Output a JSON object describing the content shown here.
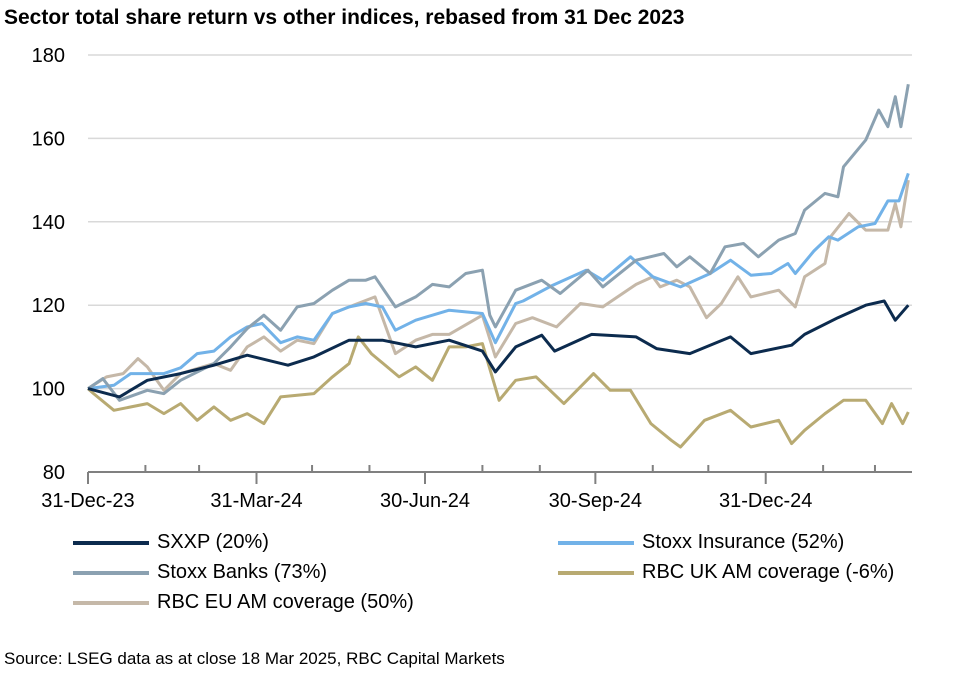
{
  "chart_data": {
    "type": "line",
    "title": "Sector total share return vs other indices, rebased from 31 Dec 2023",
    "xlabel": "",
    "ylabel": "",
    "ylim": [
      80,
      180
    ],
    "yticks": [
      80,
      100,
      120,
      140,
      160,
      180
    ],
    "xlim": [
      "2023-12-31",
      "2025-03-20"
    ],
    "xtick_labels": [
      {
        "date": "2023-12-31",
        "label": "31-Dec-23"
      },
      {
        "date": "2024-03-31",
        "label": "31-Mar-24"
      },
      {
        "date": "2024-06-30",
        "label": "30-Jun-24"
      },
      {
        "date": "2024-09-30",
        "label": "30-Sep-24"
      },
      {
        "date": "2024-12-31",
        "label": "31-Dec-24"
      }
    ],
    "grid": "horizontal",
    "legend_position": "bottom",
    "series": [
      {
        "name": "SXXP (20%)",
        "color": "#0c2b4e",
        "x": [
          "2023-12-31",
          "2024-01-17",
          "2024-02-01",
          "2024-02-19",
          "2024-03-08",
          "2024-03-26",
          "2024-04-17",
          "2024-05-01",
          "2024-05-20",
          "2024-06-07",
          "2024-06-25",
          "2024-07-13",
          "2024-07-31",
          "2024-08-07",
          "2024-08-18",
          "2024-09-01",
          "2024-09-08",
          "2024-09-28",
          "2024-10-22",
          "2024-11-02",
          "2024-11-20",
          "2024-12-12",
          "2024-12-23",
          "2025-01-14",
          "2025-01-21",
          "2025-02-08",
          "2025-02-23",
          "2025-03-05",
          "2025-03-11",
          "2025-03-18"
        ],
        "y": [
          100,
          98,
          102,
          103.6,
          105.6,
          108,
          105.6,
          107.6,
          111.6,
          111.6,
          110,
          111.6,
          109,
          104,
          110,
          112.8,
          109,
          113,
          112.4,
          109.6,
          108.4,
          112.4,
          108.4,
          110.4,
          113,
          117,
          120,
          121,
          116.4,
          120
        ]
      },
      {
        "name": "Stoxx Insurance (52%)",
        "color": "#72b2e8",
        "x": [
          "2023-12-31",
          "2024-01-14",
          "2024-01-23",
          "2024-02-10",
          "2024-02-19",
          "2024-02-28",
          "2024-03-08",
          "2024-03-17",
          "2024-03-26",
          "2024-04-03",
          "2024-04-13",
          "2024-04-22",
          "2024-05-01",
          "2024-05-11",
          "2024-05-20",
          "2024-05-29",
          "2024-06-07",
          "2024-06-14",
          "2024-06-25",
          "2024-07-13",
          "2024-07-31",
          "2024-08-07",
          "2024-08-18",
          "2024-08-22",
          "2024-09-07",
          "2024-09-25",
          "2024-10-04",
          "2024-10-19",
          "2024-10-31",
          "2024-11-15",
          "2024-12-01",
          "2024-12-12",
          "2024-12-23",
          "2025-01-03",
          "2025-01-12",
          "2025-01-16",
          "2025-01-26",
          "2025-02-03",
          "2025-02-08",
          "2025-02-19",
          "2025-02-28",
          "2025-03-07",
          "2025-03-13",
          "2025-03-18"
        ],
        "y": [
          100,
          100.8,
          103.6,
          103.6,
          105,
          108.4,
          109,
          112.4,
          114.8,
          115.6,
          111,
          112.4,
          111.6,
          118,
          119.6,
          120.4,
          119.6,
          114,
          116.4,
          118.8,
          118,
          111,
          120.4,
          121,
          124.8,
          128.4,
          126,
          131.6,
          126.8,
          124.4,
          127.6,
          130.8,
          127.2,
          127.6,
          130,
          127.6,
          133,
          136.4,
          135.6,
          138.8,
          139.6,
          145,
          145,
          151.6
        ]
      },
      {
        "name": "Stoxx Banks (73%)",
        "color": "#8ba1b1",
        "x": [
          "2023-12-31",
          "2024-01-08",
          "2024-01-17",
          "2024-02-01",
          "2024-02-10",
          "2024-02-19",
          "2024-03-08",
          "2024-03-17",
          "2024-03-26",
          "2024-04-04",
          "2024-04-13",
          "2024-04-22",
          "2024-05-01",
          "2024-05-11",
          "2024-05-20",
          "2024-05-29",
          "2024-06-03",
          "2024-06-14",
          "2024-06-25",
          "2024-07-04",
          "2024-07-13",
          "2024-07-22",
          "2024-07-31",
          "2024-08-04",
          "2024-08-07",
          "2024-08-18",
          "2024-09-01",
          "2024-09-11",
          "2024-09-26",
          "2024-10-04",
          "2024-10-22",
          "2024-11-06",
          "2024-11-13",
          "2024-11-20",
          "2024-12-01",
          "2024-12-09",
          "2024-12-19",
          "2024-12-27",
          "2025-01-07",
          "2025-01-16",
          "2025-01-21",
          "2025-02-01",
          "2025-02-08",
          "2025-02-11",
          "2025-02-23",
          "2025-03-02",
          "2025-03-07",
          "2025-03-11",
          "2025-03-14",
          "2025-03-18"
        ],
        "y": [
          100,
          102.4,
          97.2,
          99.6,
          98.8,
          102,
          106,
          110,
          114.4,
          117.6,
          114,
          119.6,
          120.4,
          123.6,
          126,
          126,
          126.8,
          119.6,
          122,
          125,
          124.4,
          127.6,
          128.4,
          117.6,
          114.8,
          123.6,
          126,
          122.8,
          128.4,
          124.4,
          130.8,
          132.4,
          129.2,
          131.6,
          127.6,
          134,
          134.8,
          131.6,
          135.6,
          137.2,
          142.8,
          146.8,
          146,
          153.2,
          159.6,
          166.8,
          162.8,
          170,
          162.8,
          173
        ]
      },
      {
        "name": "RBC UK AM coverage (-6%)",
        "color": "#b8aa72",
        "x": [
          "2023-12-31",
          "2024-01-03",
          "2024-01-14",
          "2024-02-01",
          "2024-02-10",
          "2024-02-19",
          "2024-02-28",
          "2024-03-08",
          "2024-03-17",
          "2024-03-26",
          "2024-04-04",
          "2024-04-13",
          "2024-05-01",
          "2024-05-11",
          "2024-05-20",
          "2024-05-25",
          "2024-06-01",
          "2024-06-16",
          "2024-06-25",
          "2024-07-04",
          "2024-07-13",
          "2024-07-22",
          "2024-07-31",
          "2024-08-09",
          "2024-08-18",
          "2024-08-29",
          "2024-09-13",
          "2024-09-29",
          "2024-10-08",
          "2024-10-19",
          "2024-10-30",
          "2024-11-10",
          "2024-11-15",
          "2024-11-28",
          "2024-12-12",
          "2024-12-23",
          "2025-01-07",
          "2025-01-14",
          "2025-01-21",
          "2025-02-01",
          "2025-02-11",
          "2025-02-23",
          "2025-03-04",
          "2025-03-09",
          "2025-03-15",
          "2025-03-18"
        ],
        "y": [
          100,
          98.8,
          94.8,
          96.4,
          94,
          96.4,
          92.4,
          95.6,
          92.4,
          94,
          91.6,
          98,
          98.8,
          102.8,
          106,
          112.4,
          108.4,
          102.8,
          105.2,
          102,
          110,
          110,
          110.8,
          97.2,
          102,
          102.8,
          96.4,
          103.6,
          99.6,
          99.6,
          91.6,
          87.6,
          86,
          92.4,
          94.8,
          90.8,
          92.4,
          86.8,
          90,
          94,
          97.2,
          97.2,
          91.6,
          96.4,
          91.6,
          94.4
        ]
      },
      {
        "name": "RBC EU AM coverage (50%)",
        "color": "#c5b8a8",
        "x": [
          "2023-12-31",
          "2024-01-10",
          "2024-01-19",
          "2024-01-27",
          "2024-02-01",
          "2024-02-10",
          "2024-02-19",
          "2024-03-08",
          "2024-03-17",
          "2024-03-26",
          "2024-04-04",
          "2024-04-13",
          "2024-04-22",
          "2024-05-01",
          "2024-05-11",
          "2024-05-20",
          "2024-06-03",
          "2024-06-14",
          "2024-06-25",
          "2024-07-04",
          "2024-07-13",
          "2024-07-31",
          "2024-08-07",
          "2024-08-18",
          "2024-08-27",
          "2024-09-09",
          "2024-09-22",
          "2024-10-04",
          "2024-10-22",
          "2024-10-31",
          "2024-11-04",
          "2024-11-13",
          "2024-11-20",
          "2024-11-29",
          "2024-12-07",
          "2024-12-16",
          "2024-12-23",
          "2025-01-07",
          "2025-01-16",
          "2025-01-21",
          "2025-02-01",
          "2025-02-04",
          "2025-02-14",
          "2025-02-23",
          "2025-03-07",
          "2025-03-11",
          "2025-03-14",
          "2025-03-18"
        ],
        "y": [
          100,
          102.8,
          103.6,
          107.2,
          105.2,
          99.6,
          103.6,
          106,
          104.4,
          110,
          112.4,
          109,
          111.6,
          110.8,
          118,
          119.6,
          122,
          108.4,
          111.6,
          113,
          113,
          117.6,
          107.6,
          115.6,
          117,
          114.8,
          120.4,
          119.6,
          125,
          126.8,
          124.4,
          126,
          124.4,
          117,
          120.4,
          126.8,
          122,
          123.6,
          119.6,
          126.8,
          130,
          136.4,
          142,
          138,
          138,
          144.4,
          138.8,
          150
        ]
      }
    ],
    "source": "Source: LSEG data as at close 18 Mar 2025, RBC Capital Markets"
  }
}
